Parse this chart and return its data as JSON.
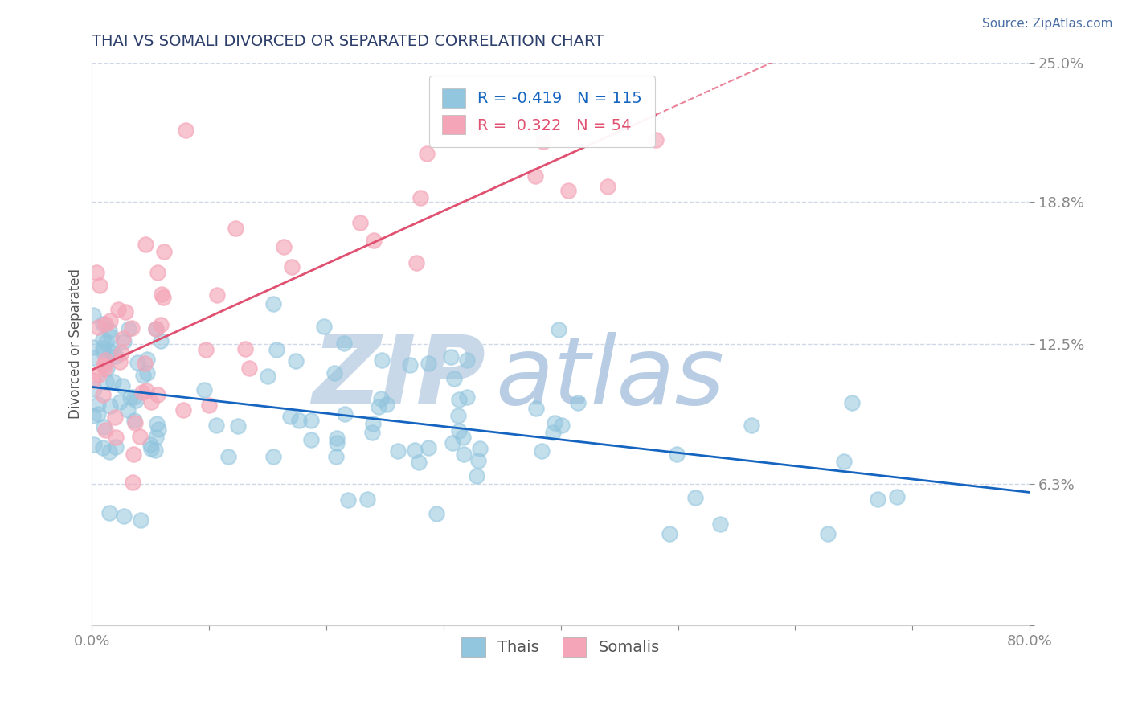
{
  "title": "THAI VS SOMALI DIVORCED OR SEPARATED CORRELATION CHART",
  "source_text": "Source: ZipAtlas.com",
  "ylabel": "Divorced or Separated",
  "xlim": [
    0.0,
    0.8
  ],
  "ylim": [
    0.0,
    0.25
  ],
  "yticks": [
    0.0,
    0.063,
    0.125,
    0.188,
    0.25
  ],
  "ytick_labels": [
    "",
    "6.3%",
    "12.5%",
    "18.8%",
    "25.0%"
  ],
  "xticks": [
    0.0,
    0.1,
    0.2,
    0.3,
    0.4,
    0.5,
    0.6,
    0.7,
    0.8
  ],
  "xtick_labels": [
    "0.0%",
    "",
    "",
    "",
    "",
    "",
    "",
    "",
    "80.0%"
  ],
  "thai_color": "#92c5de",
  "somali_color": "#f4a6b8",
  "thai_line_color": "#1565c0",
  "somali_line_color": "#e05070",
  "R_thai": -0.419,
  "N_thai": 115,
  "R_somali": 0.322,
  "N_somali": 54,
  "watermark_zip": "ZIP",
  "watermark_atlas": "atlas",
  "watermark_color_zip": "#c8d8e8",
  "watermark_color_atlas": "#b8cce4",
  "legend_label_thai": "Thais",
  "legend_label_somali": "Somalis",
  "title_color": "#2c3e6b",
  "tick_label_color": "#4a6fa5",
  "source_color": "#4a6fa5",
  "background_color": "#ffffff",
  "grid_color": "#d0d8e8",
  "thai_intercept": 0.112,
  "thai_slope": -0.072,
  "somali_intercept": 0.118,
  "somali_slope": 0.2
}
